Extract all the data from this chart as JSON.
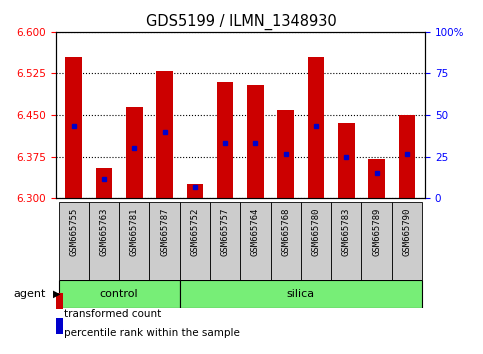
{
  "title": "GDS5199 / ILMN_1348930",
  "samples": [
    "GSM665755",
    "GSM665763",
    "GSM665781",
    "GSM665787",
    "GSM665752",
    "GSM665757",
    "GSM665764",
    "GSM665768",
    "GSM665780",
    "GSM665783",
    "GSM665789",
    "GSM665790"
  ],
  "groups": [
    "control",
    "control",
    "control",
    "control",
    "silica",
    "silica",
    "silica",
    "silica",
    "silica",
    "silica",
    "silica",
    "silica"
  ],
  "bar_tops": [
    6.555,
    6.355,
    6.465,
    6.53,
    6.325,
    6.51,
    6.505,
    6.46,
    6.555,
    6.435,
    6.37,
    6.45
  ],
  "bar_base": 6.3,
  "percentile_values": [
    6.43,
    6.335,
    6.39,
    6.42,
    6.32,
    6.4,
    6.4,
    6.38,
    6.43,
    6.375,
    6.345,
    6.38
  ],
  "ylim_left": [
    6.3,
    6.6
  ],
  "ylim_right": [
    0,
    100
  ],
  "yticks_left": [
    6.3,
    6.375,
    6.45,
    6.525,
    6.6
  ],
  "yticks_right": [
    0,
    25,
    50,
    75,
    100
  ],
  "bar_color": "#cc0000",
  "percentile_color": "#0000cc",
  "control_color": "#77ee77",
  "silica_color": "#77ee77",
  "sample_box_color": "#cccccc",
  "legend_items": [
    "transformed count",
    "percentile rank within the sample"
  ],
  "legend_colors": [
    "#cc0000",
    "#0000cc"
  ],
  "agent_label": "agent"
}
